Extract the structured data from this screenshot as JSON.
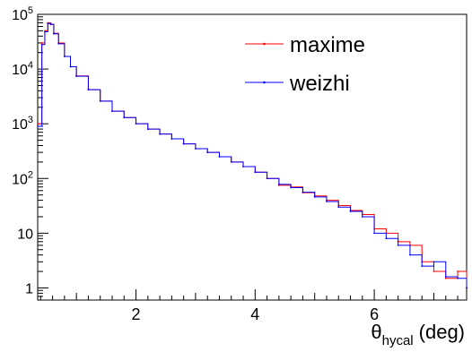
{
  "chart_data": {
    "type": "line",
    "title": "",
    "xlabel": {
      "base": "θ",
      "sub": "hycal",
      "unit": "(deg)"
    },
    "ylabel": "",
    "xlim": [
      0.35,
      7.55
    ],
    "ylim": [
      0.6,
      100000
    ],
    "yscale": "log",
    "grid": false,
    "legend_position": "top-right",
    "x_ticks": [
      2,
      4,
      6
    ],
    "x_tick_labels": [
      "2",
      "4",
      "6"
    ],
    "y_ticks": [
      1,
      10,
      100,
      1000,
      10000,
      100000
    ],
    "y_tick_labels": [
      {
        "base": "1",
        "exp": ""
      },
      {
        "base": "10",
        "exp": ""
      },
      {
        "base": "10",
        "exp": "2"
      },
      {
        "base": "10",
        "exp": "3"
      },
      {
        "base": "10",
        "exp": "4"
      },
      {
        "base": "10",
        "exp": "5"
      }
    ],
    "series": [
      {
        "name": "maxime",
        "color": "#ff0000",
        "x": [
          0.35,
          0.42,
          0.47,
          0.52,
          0.57,
          0.62,
          0.7,
          0.8,
          0.9,
          1.0,
          1.2,
          1.4,
          1.6,
          1.8,
          2.0,
          2.2,
          2.4,
          2.6,
          2.8,
          3.0,
          3.2,
          3.4,
          3.6,
          3.8,
          4.0,
          4.2,
          4.4,
          4.6,
          4.8,
          5.0,
          5.2,
          5.4,
          5.6,
          5.8,
          6.0,
          6.2,
          6.4,
          6.6,
          6.8,
          7.0,
          7.2,
          7.4,
          7.55
        ],
        "y": [
          1000,
          30000,
          50000,
          70000,
          65000,
          45000,
          30000,
          17000,
          11000,
          7500,
          4200,
          2600,
          1700,
          1300,
          1000,
          800,
          650,
          530,
          430,
          350,
          300,
          250,
          200,
          165,
          130,
          100,
          75,
          70,
          55,
          48,
          40,
          32,
          26,
          22,
          12,
          10,
          7,
          6,
          3,
          2,
          1.5,
          2,
          1
        ]
      },
      {
        "name": "weizhi",
        "color": "#0000ff",
        "x": [
          0.35,
          0.42,
          0.47,
          0.52,
          0.57,
          0.62,
          0.7,
          0.8,
          0.9,
          1.0,
          1.2,
          1.4,
          1.6,
          1.8,
          2.0,
          2.2,
          2.4,
          2.6,
          2.8,
          3.0,
          3.2,
          3.4,
          3.6,
          3.8,
          4.0,
          4.2,
          4.4,
          4.6,
          4.8,
          5.0,
          5.2,
          5.4,
          5.6,
          5.8,
          6.0,
          6.2,
          6.4,
          6.6,
          6.8,
          7.0,
          7.2,
          7.4,
          7.55
        ],
        "y": [
          900,
          28000,
          48000,
          68000,
          66000,
          44000,
          29000,
          17000,
          11000,
          7400,
          4200,
          2600,
          1700,
          1300,
          1000,
          800,
          650,
          530,
          430,
          350,
          300,
          250,
          200,
          165,
          130,
          100,
          78,
          68,
          56,
          46,
          38,
          30,
          25,
          20,
          10,
          8,
          6,
          4,
          2.5,
          3,
          1.6,
          1.5,
          1
        ]
      }
    ]
  }
}
